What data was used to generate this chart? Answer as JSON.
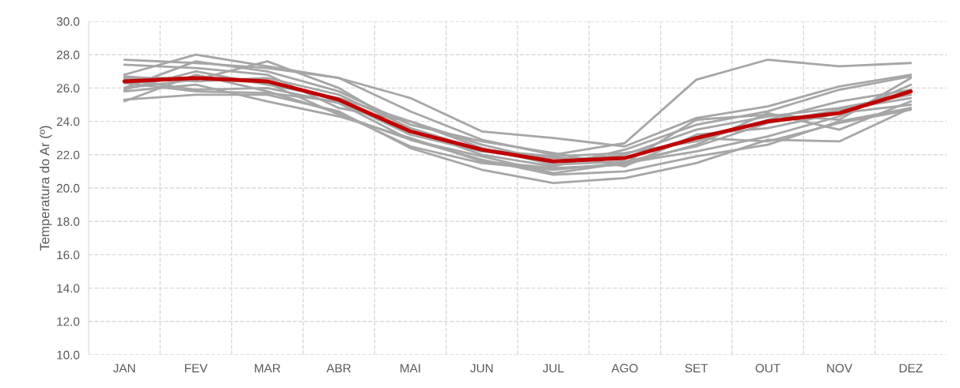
{
  "chart_data": {
    "type": "line",
    "ylabel": "Temperatura do Ar (º)",
    "categories": [
      "JAN",
      "FEV",
      "MAR",
      "ABR",
      "MAI",
      "JUN",
      "JUL",
      "AGO",
      "SET",
      "OUT",
      "NOV",
      "DEZ"
    ],
    "ylim": [
      10,
      30
    ],
    "yticks": [
      {
        "value": 10,
        "label": "10.0"
      },
      {
        "value": 12,
        "label": "12.0"
      },
      {
        "value": 14,
        "label": "14.0"
      },
      {
        "value": 16,
        "label": "16.0"
      },
      {
        "value": 18,
        "label": "18.0"
      },
      {
        "value": 20,
        "label": "20.0"
      },
      {
        "value": 22,
        "label": "22.0"
      },
      {
        "value": 24,
        "label": "24.0"
      },
      {
        "value": 26,
        "label": "26.0"
      },
      {
        "value": 28,
        "label": "28.0"
      },
      {
        "value": 30,
        "label": "30.0"
      }
    ],
    "grid": true,
    "marker": "none",
    "series": [
      {
        "color": "#a6a6a6",
        "values": [
          27.7,
          27.5,
          27.2,
          26.6,
          25.4,
          23.4,
          23.0,
          22.5,
          24.2,
          24.9,
          26.1,
          26.8
        ]
      },
      {
        "color": "#a6a6a6",
        "values": [
          26.8,
          28.0,
          27.3,
          26.6,
          24.6,
          22.9,
          22.0,
          22.7,
          26.5,
          27.7,
          27.3,
          27.5
        ]
      },
      {
        "color": "#a6a6a6",
        "values": [
          25.3,
          25.6,
          25.6,
          24.6,
          22.4,
          21.1,
          20.3,
          20.6,
          21.5,
          22.9,
          22.8,
          24.8
        ]
      },
      {
        "color": "#a6a6a6",
        "values": [
          26.0,
          26.5,
          27.6,
          26.0,
          23.5,
          22.0,
          21.3,
          22.3,
          23.8,
          24.6,
          25.9,
          26.7
        ]
      },
      {
        "color": "#a6a6a6",
        "values": [
          25.8,
          26.2,
          25.2,
          24.3,
          23.0,
          21.6,
          21.2,
          21.4,
          22.6,
          24.5,
          23.5,
          25.2
        ]
      },
      {
        "color": "#a6a6a6",
        "values": [
          26.5,
          25.9,
          26.0,
          25.1,
          22.9,
          21.9,
          20.9,
          21.5,
          22.2,
          23.1,
          24.3,
          26.2
        ]
      },
      {
        "color": "#a6a6a6",
        "values": [
          25.9,
          27.0,
          26.2,
          25.4,
          24.0,
          22.6,
          21.6,
          22.0,
          23.5,
          24.3,
          24.8,
          25.6
        ]
      },
      {
        "color": "#a6a6a6",
        "values": [
          27.4,
          27.2,
          26.8,
          24.8,
          24.0,
          22.4,
          21.4,
          21.6,
          22.5,
          23.9,
          24.7,
          25.4
        ]
      },
      {
        "color": "#a6a6a6",
        "values": [
          26.3,
          25.8,
          25.7,
          25.2,
          23.2,
          22.2,
          21.8,
          21.8,
          23.0,
          22.8,
          23.9,
          24.7
        ]
      },
      {
        "color": "#a6a6a6",
        "values": [
          25.2,
          26.8,
          25.8,
          24.5,
          22.5,
          21.5,
          21.1,
          21.5,
          24.1,
          24.4,
          24.1,
          26.6
        ]
      },
      {
        "color": "#a6a6a6",
        "values": [
          26.7,
          26.4,
          26.6,
          25.6,
          23.6,
          22.3,
          21.9,
          22.1,
          22.8,
          24.1,
          25.2,
          25.9
        ]
      },
      {
        "color": "#a6a6a6",
        "values": [
          26.0,
          27.6,
          27.0,
          25.8,
          23.8,
          22.8,
          22.1,
          21.3,
          23.2,
          23.6,
          24.5,
          25.0
        ]
      },
      {
        "color": "#a6a6a6",
        "values": [
          26.6,
          26.6,
          26.3,
          24.4,
          22.9,
          21.7,
          20.8,
          21.0,
          21.9,
          22.6,
          24.0,
          24.8
        ]
      },
      {
        "color": "#c00000",
        "values": [
          26.4,
          26.6,
          26.4,
          25.3,
          23.4,
          22.3,
          21.6,
          21.8,
          23.0,
          24.0,
          24.5,
          25.8
        ]
      }
    ]
  }
}
